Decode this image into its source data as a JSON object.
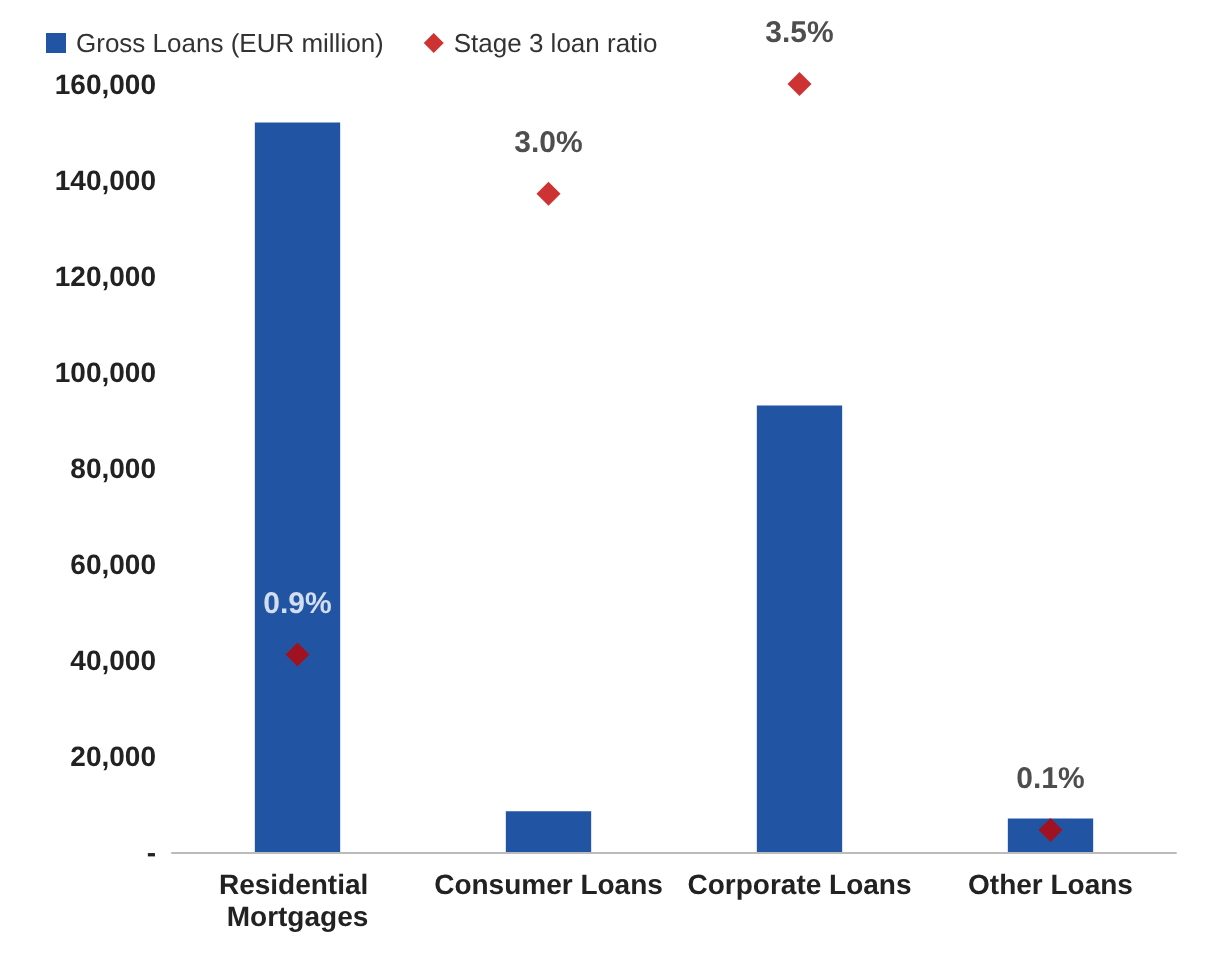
{
  "chart_data": {
    "type": "bar",
    "categories": [
      "Residential Mortgages",
      "Consumer Loans",
      "Corporate Loans",
      "Other Loans"
    ],
    "series": [
      {
        "name": "Gross Loans (EUR million)",
        "color": "#2155a3",
        "values": [
          152000,
          8500,
          93000,
          7000
        ]
      },
      {
        "name": "Stage 3 loan ratio",
        "type": "scatter",
        "axis": "y2",
        "color": "#c00000",
        "values": [
          0.9,
          3.0,
          3.5,
          0.1
        ],
        "value_labels": [
          "0.9%",
          "3.0%",
          "3.5%",
          "0.1%"
        ]
      }
    ],
    "ylim": [
      0,
      160000
    ],
    "yticks": [
      {
        "value": 0,
        "label": "-"
      },
      {
        "value": 20000,
        "label": "20,000"
      },
      {
        "value": 40000,
        "label": "40,000"
      },
      {
        "value": 60000,
        "label": "60,000"
      },
      {
        "value": 80000,
        "label": "80,000"
      },
      {
        "value": 100000,
        "label": "100,000"
      },
      {
        "value": 120000,
        "label": "120,000"
      },
      {
        "value": 140000,
        "label": "140,000"
      },
      {
        "value": 160000,
        "label": "160,000"
      }
    ],
    "tick_labels": "xy",
    "legend": "top left",
    "marker": "diamond",
    "grid": false
  }
}
